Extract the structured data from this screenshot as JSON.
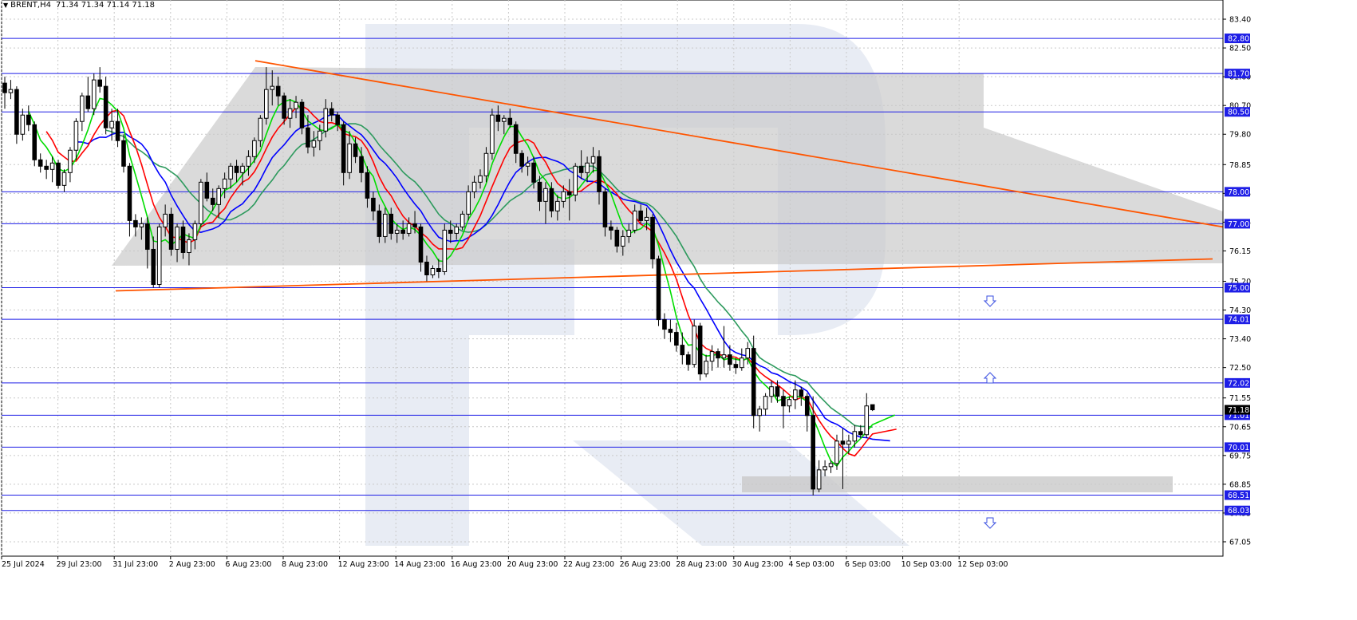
{
  "header": {
    "symbol": "BRENT",
    "timeframe": "H4",
    "ohlc": "71.34 71.34 71.14 71.18"
  },
  "chart_data": {
    "type": "candlestick",
    "symbol": "BRENT",
    "timeframe": "H4",
    "current_price": "71.18",
    "y_ticks": [
      "83.40",
      "82.50",
      "81.60",
      "80.70",
      "79.80",
      "78.85",
      "77.95",
      "77.05",
      "76.15",
      "75.20",
      "74.30",
      "73.40",
      "72.50",
      "71.55",
      "70.65",
      "69.75",
      "68.85",
      "67.95",
      "67.05"
    ],
    "x_labels": [
      "25 Jul 2024",
      "29 Jul 23:00",
      "31 Jul 23:00",
      "2 Aug 23:00",
      "6 Aug 23:00",
      "8 Aug 23:00",
      "12 Aug 23:00",
      "14 Aug 23:00",
      "16 Aug 23:00",
      "20 Aug 23:00",
      "22 Aug 23:00",
      "26 Aug 23:00",
      "28 Aug 23:00",
      "30 Aug 23:00",
      "4 Sep 03:00",
      "6 Sep 03:00",
      "10 Sep 03:00",
      "12 Sep 03:00"
    ],
    "horizontal_levels": [
      "82.80",
      "81.70",
      "80.50",
      "78.00",
      "77.00",
      "75.00",
      "74.01",
      "72.02",
      "71.01",
      "70.01",
      "68.51",
      "68.03"
    ],
    "candles": [
      [
        81.4,
        81.6,
        80.6,
        81.1
      ],
      [
        81.1,
        81.5,
        80.9,
        81.2
      ],
      [
        81.2,
        81.3,
        79.5,
        79.8
      ],
      [
        79.8,
        80.6,
        79.6,
        80.4
      ],
      [
        80.4,
        80.7,
        79.9,
        80.1
      ],
      [
        80.1,
        80.2,
        78.8,
        79.0
      ],
      [
        79.0,
        79.2,
        78.6,
        78.8
      ],
      [
        78.8,
        79.0,
        78.4,
        78.7
      ],
      [
        78.7,
        79.1,
        78.3,
        78.9
      ],
      [
        78.9,
        79.0,
        78.1,
        78.2
      ],
      [
        78.2,
        78.7,
        78.0,
        78.6
      ],
      [
        78.6,
        79.4,
        78.3,
        79.3
      ],
      [
        79.3,
        80.3,
        79.0,
        80.2
      ],
      [
        80.2,
        81.1,
        79.9,
        81.0
      ],
      [
        81.0,
        81.6,
        80.5,
        80.6
      ],
      [
        80.6,
        81.7,
        80.4,
        81.5
      ],
      [
        81.5,
        81.9,
        81.1,
        81.3
      ],
      [
        81.3,
        81.6,
        79.8,
        80.0
      ],
      [
        80.0,
        80.6,
        79.6,
        80.2
      ],
      [
        80.2,
        80.6,
        79.4,
        79.6
      ],
      [
        79.6,
        79.8,
        78.6,
        78.8
      ],
      [
        78.8,
        78.9,
        76.6,
        77.1
      ],
      [
        77.1,
        77.3,
        76.6,
        76.9
      ],
      [
        76.9,
        77.2,
        76.5,
        77.0
      ],
      [
        77.0,
        77.2,
        75.6,
        76.2
      ],
      [
        76.2,
        76.6,
        75.0,
        75.1
      ],
      [
        75.1,
        77.0,
        75.0,
        76.9
      ],
      [
        76.9,
        77.6,
        76.6,
        77.3
      ],
      [
        77.3,
        77.5,
        76.0,
        76.2
      ],
      [
        76.2,
        77.0,
        75.8,
        76.9
      ],
      [
        76.9,
        77.1,
        75.9,
        76.1
      ],
      [
        76.1,
        76.7,
        75.7,
        76.5
      ],
      [
        76.5,
        77.1,
        76.2,
        77.0
      ],
      [
        77.0,
        78.4,
        76.9,
        78.3
      ],
      [
        78.3,
        78.6,
        77.7,
        77.8
      ],
      [
        77.8,
        78.1,
        77.4,
        77.6
      ],
      [
        77.6,
        78.2,
        77.2,
        78.1
      ],
      [
        78.1,
        78.6,
        77.8,
        78.4
      ],
      [
        78.4,
        78.9,
        78.1,
        78.8
      ],
      [
        78.8,
        79.0,
        78.3,
        78.6
      ],
      [
        78.6,
        78.9,
        78.2,
        78.8
      ],
      [
        78.8,
        79.3,
        78.5,
        79.1
      ],
      [
        79.1,
        79.7,
        78.9,
        79.6
      ],
      [
        79.6,
        80.4,
        79.4,
        80.3
      ],
      [
        80.3,
        81.9,
        80.1,
        81.2
      ],
      [
        81.2,
        81.8,
        80.7,
        81.3
      ],
      [
        81.3,
        81.6,
        80.7,
        81.0
      ],
      [
        81.0,
        81.1,
        80.1,
        80.3
      ],
      [
        80.3,
        80.9,
        80.0,
        80.6
      ],
      [
        80.6,
        81.0,
        80.3,
        80.8
      ],
      [
        80.8,
        80.9,
        79.8,
        80.0
      ],
      [
        80.0,
        80.4,
        79.2,
        79.4
      ],
      [
        79.4,
        79.9,
        79.1,
        79.6
      ],
      [
        79.6,
        80.1,
        79.3,
        79.9
      ],
      [
        79.9,
        80.9,
        79.7,
        80.6
      ],
      [
        80.6,
        80.8,
        80.2,
        80.4
      ],
      [
        80.4,
        80.5,
        79.9,
        80.1
      ],
      [
        80.1,
        80.2,
        78.2,
        78.6
      ],
      [
        78.6,
        79.9,
        78.4,
        79.5
      ],
      [
        79.5,
        79.7,
        78.9,
        79.1
      ],
      [
        79.1,
        79.4,
        78.3,
        78.6
      ],
      [
        78.6,
        78.8,
        77.5,
        77.8
      ],
      [
        77.8,
        78.0,
        77.1,
        77.4
      ],
      [
        77.4,
        77.6,
        76.4,
        76.6
      ],
      [
        76.6,
        77.5,
        76.4,
        77.3
      ],
      [
        77.3,
        77.5,
        76.5,
        76.7
      ],
      [
        76.7,
        77.0,
        76.4,
        76.8
      ],
      [
        76.8,
        77.1,
        76.5,
        76.7
      ],
      [
        76.7,
        77.2,
        76.6,
        77.0
      ],
      [
        77.0,
        77.4,
        76.7,
        76.9
      ],
      [
        76.9,
        77.0,
        75.5,
        75.8
      ],
      [
        75.8,
        76.0,
        75.2,
        75.4
      ],
      [
        75.4,
        75.7,
        75.3,
        75.6
      ],
      [
        75.6,
        75.9,
        75.3,
        75.5
      ],
      [
        75.5,
        77.0,
        75.4,
        76.8
      ],
      [
        76.8,
        77.1,
        76.4,
        76.7
      ],
      [
        76.7,
        77.0,
        76.5,
        76.9
      ],
      [
        76.9,
        77.4,
        76.8,
        77.3
      ],
      [
        77.3,
        78.2,
        77.1,
        78.0
      ],
      [
        78.0,
        78.5,
        77.8,
        78.3
      ],
      [
        78.3,
        78.7,
        78.1,
        78.5
      ],
      [
        78.5,
        79.4,
        78.3,
        79.2
      ],
      [
        79.2,
        80.6,
        79.0,
        80.4
      ],
      [
        80.4,
        80.7,
        79.9,
        80.2
      ],
      [
        80.2,
        80.4,
        79.8,
        80.3
      ],
      [
        80.3,
        80.6,
        80.0,
        80.1
      ],
      [
        80.1,
        80.2,
        78.9,
        79.2
      ],
      [
        79.2,
        79.3,
        78.6,
        78.8
      ],
      [
        78.8,
        79.1,
        78.5,
        78.9
      ],
      [
        78.9,
        79.1,
        78.1,
        78.3
      ],
      [
        78.3,
        78.5,
        77.4,
        77.7
      ],
      [
        77.7,
        78.3,
        77.0,
        78.1
      ],
      [
        78.1,
        78.3,
        77.2,
        77.4
      ],
      [
        77.4,
        77.9,
        77.1,
        77.7
      ],
      [
        77.7,
        78.2,
        77.5,
        78.0
      ],
      [
        78.0,
        78.4,
        77.1,
        77.9
      ],
      [
        77.9,
        78.9,
        77.7,
        78.8
      ],
      [
        78.8,
        79.3,
        78.4,
        78.6
      ],
      [
        78.6,
        79.1,
        78.3,
        78.9
      ],
      [
        78.9,
        79.4,
        78.6,
        79.1
      ],
      [
        79.1,
        79.3,
        77.6,
        78.0
      ],
      [
        78.0,
        78.1,
        76.6,
        76.9
      ],
      [
        76.9,
        77.1,
        76.5,
        76.8
      ],
      [
        76.8,
        76.9,
        76.1,
        76.3
      ],
      [
        76.3,
        76.8,
        76.0,
        76.6
      ],
      [
        76.6,
        77.0,
        76.4,
        76.8
      ],
      [
        76.8,
        77.6,
        76.7,
        77.4
      ],
      [
        77.4,
        77.6,
        77.0,
        77.1
      ],
      [
        77.1,
        77.5,
        76.8,
        77.2
      ],
      [
        77.2,
        77.3,
        75.6,
        75.9
      ],
      [
        75.9,
        76.0,
        73.8,
        74.0
      ],
      [
        74.0,
        74.2,
        73.4,
        73.7
      ],
      [
        73.7,
        74.0,
        73.3,
        73.6
      ],
      [
        73.6,
        73.9,
        73.0,
        73.2
      ],
      [
        73.2,
        73.6,
        72.6,
        72.9
      ],
      [
        72.9,
        73.0,
        72.4,
        72.6
      ],
      [
        72.6,
        74.0,
        72.5,
        73.8
      ],
      [
        73.8,
        73.9,
        72.1,
        72.3
      ],
      [
        72.3,
        72.9,
        72.2,
        72.7
      ],
      [
        72.7,
        73.2,
        72.4,
        73.0
      ],
      [
        73.0,
        73.1,
        72.5,
        72.8
      ],
      [
        72.8,
        73.8,
        72.5,
        72.9
      ],
      [
        72.9,
        73.2,
        72.4,
        72.6
      ],
      [
        72.6,
        72.8,
        72.3,
        72.5
      ],
      [
        72.5,
        73.1,
        72.4,
        72.8
      ],
      [
        72.8,
        73.3,
        72.6,
        73.1
      ],
      [
        73.1,
        73.5,
        70.6,
        71.0
      ],
      [
        71.0,
        71.3,
        70.5,
        71.2
      ],
      [
        71.2,
        71.7,
        71.0,
        71.6
      ],
      [
        71.6,
        72.1,
        71.4,
        71.9
      ],
      [
        71.9,
        72.1,
        71.4,
        71.6
      ],
      [
        71.6,
        71.8,
        70.6,
        71.3
      ],
      [
        71.3,
        71.6,
        71.1,
        71.5
      ],
      [
        71.5,
        72.1,
        71.2,
        71.8
      ],
      [
        71.8,
        71.9,
        71.3,
        71.6
      ],
      [
        71.6,
        71.7,
        70.5,
        71.0
      ],
      [
        71.0,
        71.6,
        68.5,
        68.7
      ],
      [
        68.7,
        69.6,
        68.6,
        69.3
      ],
      [
        69.3,
        69.6,
        69.1,
        69.4
      ],
      [
        69.4,
        69.6,
        69.2,
        69.5
      ],
      [
        69.5,
        70.4,
        69.3,
        70.2
      ],
      [
        70.2,
        70.6,
        68.7,
        70.1
      ],
      [
        70.1,
        70.4,
        69.8,
        70.2
      ],
      [
        70.2,
        70.7,
        70.0,
        70.5
      ],
      [
        70.5,
        70.7,
        70.3,
        70.4
      ],
      [
        70.4,
        71.7,
        70.3,
        71.3
      ],
      [
        71.34,
        71.34,
        71.14,
        71.18
      ]
    ],
    "trendlines": [
      {
        "name": "upper-resistance",
        "points": [
          [
            21,
            82.1
          ],
          [
            217,
            76.9
          ]
        ]
      },
      {
        "name": "lower-support",
        "points": [
          [
            9,
            74.9
          ],
          [
            210,
            75.9
          ]
        ]
      }
    ]
  }
}
